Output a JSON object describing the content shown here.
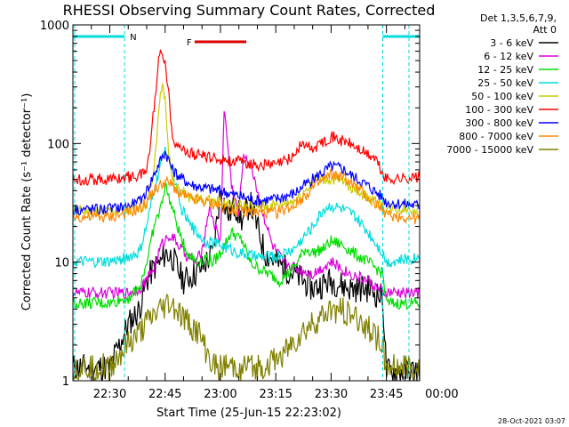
{
  "chart_data": {
    "type": "line",
    "title": "RHESSI Observing Summary Count Rates, Corrected",
    "xlabel": "Start Time (25-Jun-15 22:23:02)",
    "ylabel": "Corrected Count Rate (s⁻¹ detector⁻¹)",
    "yscale": "log",
    "ylim": [
      1,
      1000
    ],
    "y_ticks": [
      {
        "value": 1,
        "label": "1"
      },
      {
        "value": 10,
        "label": "10"
      },
      {
        "value": 100,
        "label": "100"
      },
      {
        "value": 1000,
        "label": "1000"
      }
    ],
    "xlim_minutes": [
      -10,
      84
    ],
    "x_ticks": [
      {
        "minute": 0,
        "label": "22:30"
      },
      {
        "minute": 15,
        "label": "22:45"
      },
      {
        "minute": 30,
        "label": "23:00"
      },
      {
        "minute": 45,
        "label": "23:15"
      },
      {
        "minute": 60,
        "label": "23:30"
      },
      {
        "minute": 75,
        "label": "23:45"
      },
      {
        "minute": 90,
        "label": "00:00"
      }
    ],
    "legend_header": [
      "Det 1,3,5,6,7,9,",
      "Att 0"
    ],
    "series": [
      {
        "name": "3 - 6 keV",
        "color": "#000000",
        "x": [
          -10,
          0,
          5,
          8,
          10,
          12,
          14,
          15,
          17,
          19,
          20,
          23,
          25,
          28,
          30,
          32,
          34,
          36,
          38,
          40,
          42,
          45,
          50,
          55,
          60,
          65,
          70,
          74,
          75,
          84
        ],
        "y": [
          1.3,
          1.3,
          3,
          4,
          7,
          9,
          10,
          12,
          11,
          8,
          7,
          8,
          9,
          12,
          40,
          25,
          30,
          22,
          32,
          20,
          12,
          10,
          8,
          6,
          7,
          6,
          6,
          5,
          1.2,
          1.2
        ]
      },
      {
        "name": "6 - 12 keV",
        "color": "#dd00dd",
        "x": [
          -10,
          0,
          5,
          8,
          10,
          12,
          14,
          16,
          18,
          20,
          23,
          25,
          27,
          29,
          30,
          31,
          33,
          35,
          36,
          37,
          39,
          41,
          44,
          47,
          50,
          55,
          60,
          65,
          70,
          74,
          75,
          84
        ],
        "y": [
          5.5,
          5.5,
          5.5,
          6,
          7,
          9,
          14,
          17,
          15,
          12,
          10,
          12,
          30,
          18,
          15,
          200,
          45,
          25,
          70,
          80,
          55,
          30,
          14,
          10,
          9,
          8,
          10,
          8,
          7,
          5.5,
          5.5,
          5.5
        ]
      },
      {
        "name": "12 - 25 keV",
        "color": "#00dd00",
        "x": [
          -10,
          0,
          5,
          8,
          10,
          12,
          14,
          15,
          17,
          19,
          21,
          24,
          26,
          28,
          30,
          33,
          36,
          38,
          40,
          43,
          46,
          50,
          53,
          55,
          58,
          60,
          63,
          66,
          70,
          74,
          75,
          84
        ],
        "y": [
          4.5,
          4.5,
          5,
          6,
          10,
          20,
          30,
          45,
          28,
          17,
          12,
          10,
          11,
          10,
          12,
          18,
          15,
          10,
          9,
          8,
          7,
          9,
          13,
          12,
          13,
          15,
          14,
          12,
          10,
          8,
          4.5,
          4.5
        ]
      },
      {
        "name": "25 - 50 keV",
        "color": "#00dddd",
        "x": [
          -10,
          0,
          5,
          8,
          10,
          12,
          14,
          15,
          17,
          19,
          22,
          26,
          30,
          35,
          40,
          45,
          50,
          55,
          58,
          60,
          63,
          66,
          70,
          74,
          75,
          84
        ],
        "y": [
          10,
          10,
          11,
          12,
          20,
          40,
          70,
          95,
          60,
          30,
          20,
          15,
          14,
          12,
          11,
          11,
          13,
          20,
          28,
          30,
          28,
          25,
          18,
          12,
          10,
          11
        ]
      },
      {
        "name": "50 - 100 keV",
        "color": "#cccc00",
        "x": [
          -10,
          0,
          5,
          8,
          10,
          12,
          13,
          14,
          15,
          16,
          17,
          19,
          22,
          26,
          30,
          35,
          40,
          45,
          50,
          53,
          55,
          58,
          60,
          63,
          66,
          70,
          74,
          75,
          84
        ],
        "y": [
          27,
          27,
          27,
          28,
          32,
          60,
          150,
          300,
          250,
          80,
          50,
          40,
          35,
          33,
          32,
          30,
          29,
          30,
          33,
          40,
          48,
          50,
          50,
          48,
          42,
          35,
          30,
          28,
          28
        ]
      },
      {
        "name": "100 - 300 keV",
        "color": "#ff0000",
        "x": [
          -10,
          0,
          5,
          8,
          10,
          11,
          12,
          13,
          14,
          15,
          16,
          17,
          18,
          20,
          22,
          26,
          30,
          35,
          40,
          45,
          48,
          50,
          52,
          55,
          58,
          60,
          62,
          65,
          70,
          72,
          74,
          75,
          84
        ],
        "y": [
          50,
          50,
          52,
          54,
          60,
          100,
          200,
          450,
          620,
          500,
          250,
          120,
          100,
          88,
          82,
          78,
          74,
          70,
          66,
          66,
          72,
          80,
          100,
          90,
          105,
          115,
          108,
          100,
          80,
          75,
          55,
          50,
          52
        ]
      },
      {
        "name": "300 - 800 keV",
        "color": "#0000ff",
        "x": [
          -10,
          0,
          5,
          8,
          10,
          12,
          14,
          15,
          16,
          17,
          19,
          22,
          26,
          30,
          35,
          40,
          45,
          50,
          55,
          60,
          63,
          65,
          70,
          74,
          75,
          84
        ],
        "y": [
          28,
          28,
          30,
          32,
          40,
          55,
          75,
          85,
          72,
          60,
          52,
          45,
          42,
          40,
          36,
          33,
          34,
          38,
          50,
          64,
          62,
          55,
          44,
          35,
          32,
          30
        ]
      },
      {
        "name": "800 - 7000 keV",
        "color": "#ff8800",
        "x": [
          -10,
          0,
          5,
          8,
          10,
          12,
          14,
          15,
          17,
          19,
          22,
          26,
          30,
          35,
          40,
          45,
          50,
          55,
          60,
          63,
          65,
          70,
          74,
          75,
          84
        ],
        "y": [
          24,
          24,
          26,
          28,
          32,
          40,
          45,
          48,
          44,
          38,
          34,
          32,
          30,
          27,
          26,
          26,
          30,
          42,
          55,
          52,
          48,
          35,
          28,
          25,
          23
        ]
      },
      {
        "name": "7000 - 15000 keV",
        "color": "#808000",
        "x": [
          -10,
          -5,
          0,
          5,
          8,
          10,
          12,
          14,
          16,
          18,
          20,
          24,
          26,
          28,
          30,
          33,
          36,
          40,
          44,
          48,
          52,
          55,
          58,
          60,
          63,
          66,
          70,
          74,
          75,
          84
        ],
        "y": [
          1.3,
          1.3,
          1.3,
          2,
          2.5,
          3,
          3.5,
          4,
          4.5,
          4,
          3.3,
          2.5,
          1.8,
          1.3,
          1.3,
          1.3,
          1.3,
          1.3,
          1.4,
          1.8,
          2.5,
          3,
          3.5,
          4,
          4,
          3.5,
          2.8,
          2,
          1.3,
          1.3
        ]
      }
    ],
    "annotations": [
      {
        "label": "N",
        "color": "#00dddd",
        "x_start_minute": -10,
        "x_end_minute": 4,
        "level": "top"
      },
      {
        "label": "",
        "color": "#00dddd",
        "x_start_minute": 74,
        "x_end_minute": 84,
        "level": "top"
      },
      {
        "label": "F",
        "color": "#dd0000",
        "x_start_minute": 23,
        "x_end_minute": 37,
        "level": "upper"
      }
    ],
    "night_boundaries_minutes": [
      4,
      74
    ],
    "footer_date": "28-Oct-2021 03:07"
  }
}
